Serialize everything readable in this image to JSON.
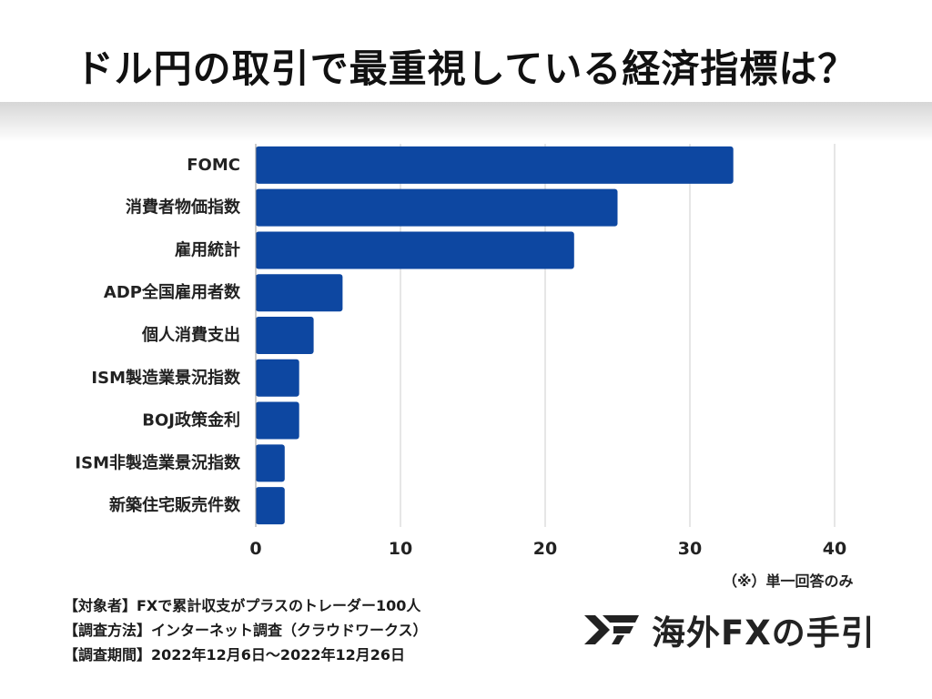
{
  "title": "ドル円の取引で最重視している経済指標は？",
  "note": "（※）単一回答のみ",
  "survey": {
    "line1": "【対象者】FXで累計収支がプラスのトレーダー100人",
    "line2": "【調査方法】インターネット調査（クラウドワークス）",
    "line3": "【調査期間】2022年12月6日〜2022年12月26日"
  },
  "brand": {
    "name": "海外FXの手引",
    "logo_icon": "fx-logo-icon"
  },
  "colors": {
    "bar": "#0d47a1",
    "grid": "#cccccc",
    "text": "#222222"
  },
  "chart_data": {
    "type": "bar",
    "orientation": "horizontal",
    "title": "ドル円の取引で最重視している経済指標は？",
    "categories": [
      "FOMC",
      "消費者物価指数",
      "雇用統計",
      "ADP全国雇用者数",
      "個人消費支出",
      "ISM製造業景況指数",
      "BOJ政策金利",
      "ISM非製造業景況指数",
      "新築住宅販売件数"
    ],
    "values": [
      33,
      25,
      22,
      6,
      4,
      3,
      3,
      2,
      2
    ],
    "xlim": [
      0,
      40
    ],
    "xticks": [
      0,
      10,
      20,
      30,
      40
    ],
    "xlabel": "",
    "ylabel": "",
    "grid": true,
    "legend": "none"
  }
}
